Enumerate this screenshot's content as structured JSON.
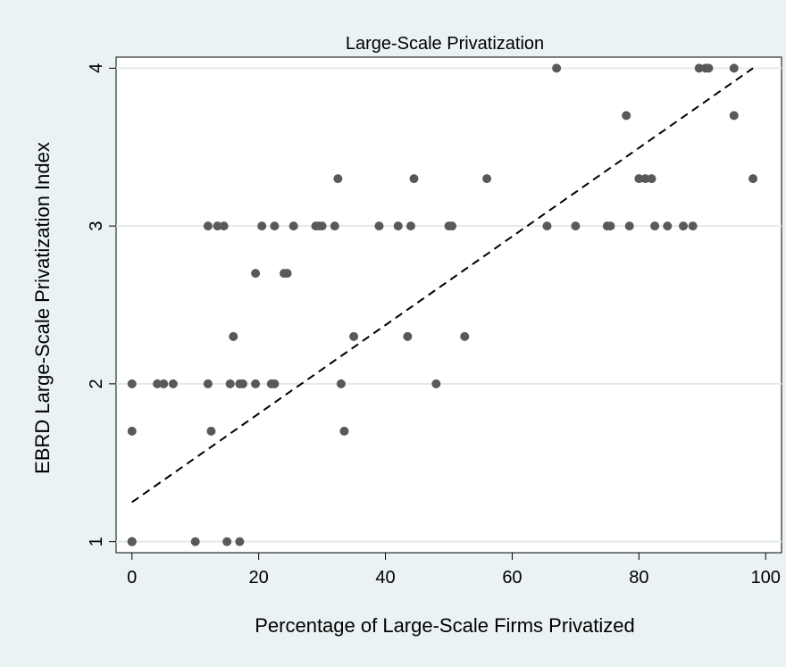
{
  "chart_data": {
    "type": "scatter",
    "title": "Large-Scale Privatization",
    "xlabel": "Percentage of Large-Scale Firms Privatized",
    "ylabel": "EBRD Large-Scale Privatization Index",
    "xlim": [
      -2.5,
      102.5
    ],
    "ylim": [
      0.93,
      4.07
    ],
    "xticks": [
      0,
      20,
      40,
      60,
      80,
      100
    ],
    "yticks": [
      1,
      2,
      3,
      4
    ],
    "grid": "horizontal",
    "colors": {
      "points": "#595959",
      "fit_line": "#000000",
      "background": "#eaf2f3",
      "plot_area": "#ffffff",
      "grid": "#e3eaea"
    },
    "fit_line": {
      "style": "dashed",
      "x": [
        0,
        98
      ],
      "y": [
        1.25,
        4.0
      ]
    },
    "series": [
      {
        "points": [
          [
            0,
            1
          ],
          [
            0,
            1
          ],
          [
            0,
            1
          ],
          [
            0,
            1
          ],
          [
            0,
            1.7
          ],
          [
            0,
            2
          ],
          [
            4,
            2
          ],
          [
            5,
            2
          ],
          [
            6.5,
            2
          ],
          [
            10,
            1
          ],
          [
            12,
            2
          ],
          [
            12.5,
            1.7
          ],
          [
            12,
            3
          ],
          [
            13.5,
            3
          ],
          [
            14.5,
            3
          ],
          [
            15,
            1
          ],
          [
            15.5,
            2
          ],
          [
            16,
            2.3
          ],
          [
            17,
            2
          ],
          [
            17,
            1
          ],
          [
            17.5,
            2
          ],
          [
            19.5,
            2.7
          ],
          [
            19.5,
            2
          ],
          [
            20.5,
            3
          ],
          [
            22,
            2
          ],
          [
            22.5,
            2
          ],
          [
            22.5,
            3
          ],
          [
            24,
            2.7
          ],
          [
            24.5,
            2.7
          ],
          [
            25.5,
            3
          ],
          [
            29,
            3
          ],
          [
            29.5,
            3
          ],
          [
            30,
            3
          ],
          [
            32,
            3
          ],
          [
            32.5,
            3.3
          ],
          [
            33,
            2
          ],
          [
            33.5,
            1.7
          ],
          [
            35,
            2.3
          ],
          [
            39,
            3
          ],
          [
            42,
            3
          ],
          [
            43.5,
            2.3
          ],
          [
            44,
            3
          ],
          [
            44.5,
            3.3
          ],
          [
            48,
            2
          ],
          [
            50,
            3
          ],
          [
            50.5,
            3
          ],
          [
            52.5,
            2.3
          ],
          [
            56,
            3.3
          ],
          [
            65.5,
            3
          ],
          [
            67,
            4
          ],
          [
            70,
            3
          ],
          [
            75,
            3
          ],
          [
            75.5,
            3
          ],
          [
            78,
            3.7
          ],
          [
            78.5,
            3
          ],
          [
            80,
            3.3
          ],
          [
            81,
            3.3
          ],
          [
            82,
            3.3
          ],
          [
            82.5,
            3
          ],
          [
            84.5,
            3
          ],
          [
            87,
            3
          ],
          [
            88.5,
            3
          ],
          [
            89.5,
            4
          ],
          [
            90.5,
            4
          ],
          [
            91,
            4
          ],
          [
            95,
            4
          ],
          [
            95,
            3.7
          ],
          [
            98,
            3.3
          ]
        ]
      }
    ]
  }
}
